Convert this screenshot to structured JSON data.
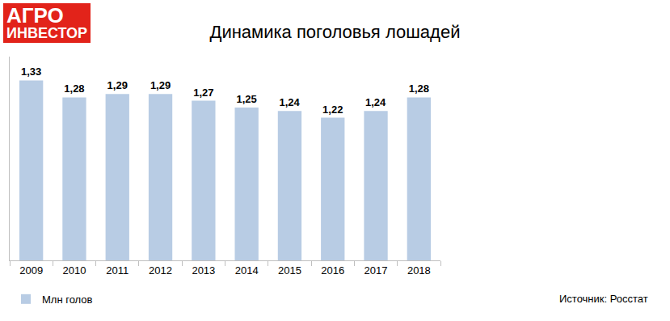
{
  "logo": {
    "lines": [
      "АГРО",
      "ИНВЕСТОР"
    ]
  },
  "chart_data": {
    "type": "bar",
    "title": "Динамика поголовья лошадей",
    "categories": [
      "2009",
      "2010",
      "2011",
      "2012",
      "2013",
      "2014",
      "2015",
      "2016",
      "2017",
      "2018"
    ],
    "series": [
      {
        "name": "Млн голов",
        "color": "#b8cce4",
        "values": [
          1.33,
          1.28,
          1.29,
          1.29,
          1.27,
          1.25,
          1.24,
          1.22,
          1.24,
          1.28
        ],
        "value_labels": [
          "1,33",
          "1,28",
          "1,29",
          "1,29",
          "1,27",
          "1,25",
          "1,24",
          "1,22",
          "1,24",
          "1,28"
        ]
      }
    ],
    "ylim": [
      0.8,
      1.4
    ],
    "yticks": [],
    "grid": false,
    "legend": "bottom-left",
    "data_labels": true,
    "tick_labels": "x",
    "source": "Источник: Росстат"
  }
}
